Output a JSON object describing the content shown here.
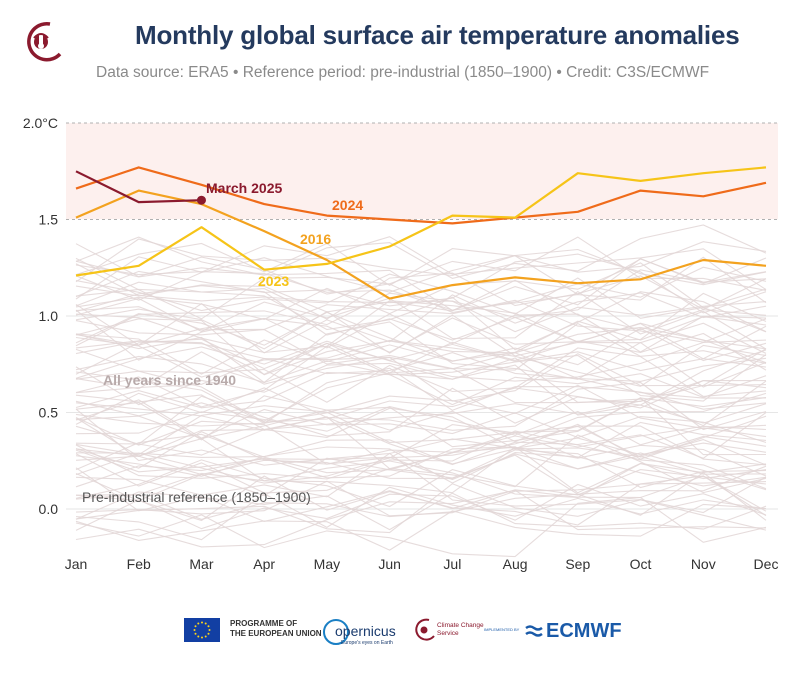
{
  "header": {
    "title": "Monthly global surface air temperature anomalies",
    "subtitle": "Data source: ERA5 • Reference period: pre-industrial (1850–1900) • Credit: C3S/ECMWF"
  },
  "footer": {
    "eu_line1": "PROGRAMME OF",
    "eu_line2": "THE EUROPEAN UNION",
    "copernicus_word": "opernicus",
    "copernicus_sub": "Europe's eyes on Earth",
    "c3s_text": "Climate Change Service",
    "ecmwf_impl": "IMPLEMENTED BY",
    "ecmwf_word": "ECMWF"
  },
  "colors": {
    "band_fill": "#fdf0ee",
    "background_years": "#e2d6d6",
    "y2025": "#8b1a2e",
    "y2024": "#ef6b1a",
    "y2016": "#f3a21f",
    "y2023": "#f6c418",
    "muted_label": "#b8aaaa"
  },
  "chart_data": {
    "type": "line",
    "title": "Monthly global surface air temperature anomalies",
    "x_categories": [
      "Jan",
      "Feb",
      "Mar",
      "Apr",
      "May",
      "Jun",
      "Jul",
      "Aug",
      "Sep",
      "Oct",
      "Nov",
      "Dec"
    ],
    "y_ticks": [
      "2.0°C",
      "1.5",
      "1.0",
      "0.5",
      "0.0"
    ],
    "ylim": [
      -0.2,
      2.0
    ],
    "highlight_band": [
      1.5,
      2.0
    ],
    "grid": true,
    "series": [
      {
        "name": "2024",
        "color": "#ef6b1a",
        "values": [
          1.66,
          1.77,
          1.68,
          1.58,
          1.52,
          1.5,
          1.48,
          1.51,
          1.54,
          1.65,
          1.62,
          1.69
        ]
      },
      {
        "name": "2016",
        "color": "#f3a21f",
        "values": [
          1.51,
          1.65,
          1.58,
          1.44,
          1.29,
          1.09,
          1.16,
          1.2,
          1.17,
          1.19,
          1.29,
          1.26
        ]
      },
      {
        "name": "2023",
        "color": "#f6c418",
        "values": [
          1.21,
          1.26,
          1.46,
          1.24,
          1.27,
          1.36,
          1.52,
          1.51,
          1.74,
          1.7,
          1.74,
          1.77
        ]
      },
      {
        "name": "March 2025",
        "color": "#8b1a2e",
        "values": [
          1.75,
          1.59,
          1.6
        ]
      }
    ],
    "annotations": {
      "background_label": "All years since 1940",
      "baseline_label": "Pre-industrial reference (1850–1900)",
      "label_2024": "2024",
      "label_2016": "2016",
      "label_2023": "2023",
      "label_2025": "March 2025"
    }
  }
}
